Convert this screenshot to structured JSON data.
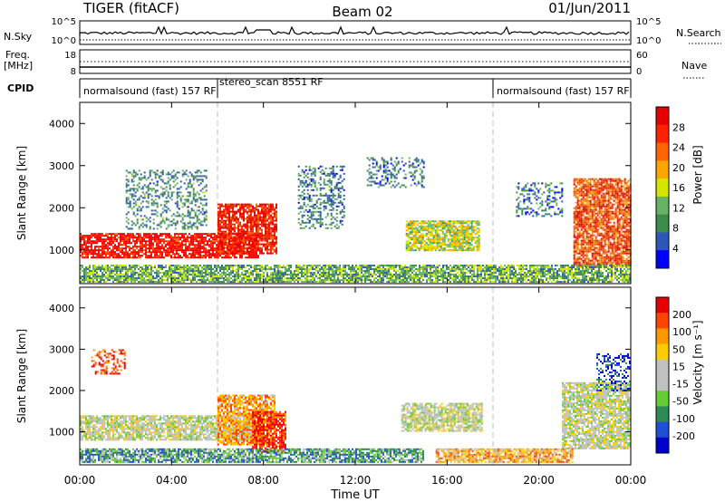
{
  "header": {
    "radar": "TIGER (fitACF)",
    "beam": "Beam 02",
    "date": "01/Jun/2011"
  },
  "top_panel": {
    "left_label": "N.Sky",
    "right_label": "N.Search",
    "left_ticks": [
      "10^5",
      "10^0"
    ],
    "right_ticks": [
      "10^5",
      "10^0"
    ]
  },
  "freq_panel": {
    "left_label_1": "Freq.",
    "left_label_2": "[MHz]",
    "right_label": "Nave",
    "left_ticks": [
      "18",
      "8"
    ],
    "right_ticks": [
      "60",
      "0"
    ]
  },
  "cpid_panel": {
    "label": "CPID",
    "segments": [
      {
        "text": "normalsound (fast) 157 RF",
        "start_hour": 0
      },
      {
        "text": "stereo_scan 8551 RF",
        "start_hour": 6
      },
      {
        "text": "normalsound (fast) 157 RF",
        "start_hour": 18
      }
    ]
  },
  "x_axis": {
    "label": "Time UT",
    "ticks": [
      "00:00",
      "04:00",
      "08:00",
      "12:00",
      "16:00",
      "20:00",
      "00:00"
    ]
  },
  "colors": {
    "power_scale": [
      "#0000ff",
      "#2e58b8",
      "#3c8c4c",
      "#66b366",
      "#d4e600",
      "#ffa500",
      "#ff6600",
      "#ff2200",
      "#e60000"
    ],
    "velocity_scale": [
      "#0000cc",
      "#1f4fd6",
      "#2e8b57",
      "#66cc33",
      "#c0c0c0",
      "#c0c0c0",
      "#ffcc00",
      "#ff9900",
      "#ff4400",
      "#e60000"
    ]
  },
  "chart_data": [
    {
      "type": "heatmap",
      "name": "power",
      "ylabel": "Slant Range [km]",
      "yticks": [
        "1000",
        "2000",
        "3000",
        "4000"
      ],
      "ylim": [
        200,
        4500
      ],
      "xlim": [
        0,
        24
      ],
      "colorbar": {
        "label": "Power [dB]",
        "ticks": [
          "4",
          "8",
          "12",
          "16",
          "20",
          "24",
          "28"
        ]
      },
      "features": [
        {
          "kind": "band",
          "t0": 0.0,
          "t1": 7.8,
          "r0": 820,
          "r1": 1400,
          "level": 0.92
        },
        {
          "kind": "band",
          "t0": 6.0,
          "t1": 8.6,
          "r0": 900,
          "r1": 2100,
          "level": 0.88
        },
        {
          "kind": "band",
          "t0": 14.2,
          "t1": 17.4,
          "r0": 1000,
          "r1": 1700,
          "level": 0.48
        },
        {
          "kind": "band",
          "t0": 21.5,
          "t1": 24.0,
          "r0": 600,
          "r1": 2700,
          "level": 0.78
        },
        {
          "kind": "band",
          "t0": 0.0,
          "t1": 24.0,
          "r0": 250,
          "r1": 650,
          "level": 0.36
        },
        {
          "kind": "patch",
          "t0": 2.0,
          "t1": 5.5,
          "r0": 1500,
          "r1": 2900,
          "level": 0.28
        },
        {
          "kind": "patch",
          "t0": 9.5,
          "t1": 11.5,
          "r0": 1500,
          "r1": 3000,
          "level": 0.25
        },
        {
          "kind": "patch",
          "t0": 12.5,
          "t1": 15.0,
          "r0": 2500,
          "r1": 3200,
          "level": 0.22
        },
        {
          "kind": "patch",
          "t0": 19.0,
          "t1": 21.0,
          "r0": 1800,
          "r1": 2600,
          "level": 0.22
        }
      ]
    },
    {
      "type": "heatmap",
      "name": "velocity",
      "ylabel": "Slant Range [km]",
      "yticks": [
        "1000",
        "2000",
        "3000",
        "4000"
      ],
      "ylim": [
        200,
        4500
      ],
      "xlim": [
        0,
        24
      ],
      "colorbar": {
        "label": "Velocity [m s⁻¹]",
        "ticks": [
          "200",
          "100",
          "50",
          "15",
          "-15",
          "-50",
          "-100",
          "-200"
        ]
      },
      "features": [
        {
          "kind": "band",
          "t0": 0.0,
          "t1": 8.0,
          "r0": 820,
          "r1": 1400,
          "level": 0.5
        },
        {
          "kind": "band",
          "t0": 6.0,
          "t1": 8.5,
          "r0": 700,
          "r1": 1900,
          "level": 0.72
        },
        {
          "kind": "band",
          "t0": 7.5,
          "t1": 9.0,
          "r0": 500,
          "r1": 1500,
          "level": 0.9
        },
        {
          "kind": "band",
          "t0": 14.0,
          "t1": 17.5,
          "r0": 1000,
          "r1": 1700,
          "level": 0.5
        },
        {
          "kind": "band",
          "t0": 21.0,
          "t1": 24.0,
          "r0": 600,
          "r1": 2200,
          "level": 0.5
        },
        {
          "kind": "band",
          "t0": 15.5,
          "t1": 21.5,
          "r0": 250,
          "r1": 600,
          "level": 0.7
        },
        {
          "kind": "band",
          "t0": 0.0,
          "t1": 15.0,
          "r0": 250,
          "r1": 600,
          "level": 0.3
        },
        {
          "kind": "patch",
          "t0": 0.5,
          "t1": 2.0,
          "r0": 2400,
          "r1": 3000,
          "level": 0.88
        },
        {
          "kind": "patch",
          "t0": 22.5,
          "t1": 24.0,
          "r0": 2000,
          "r1": 2900,
          "level": 0.12
        }
      ]
    }
  ]
}
